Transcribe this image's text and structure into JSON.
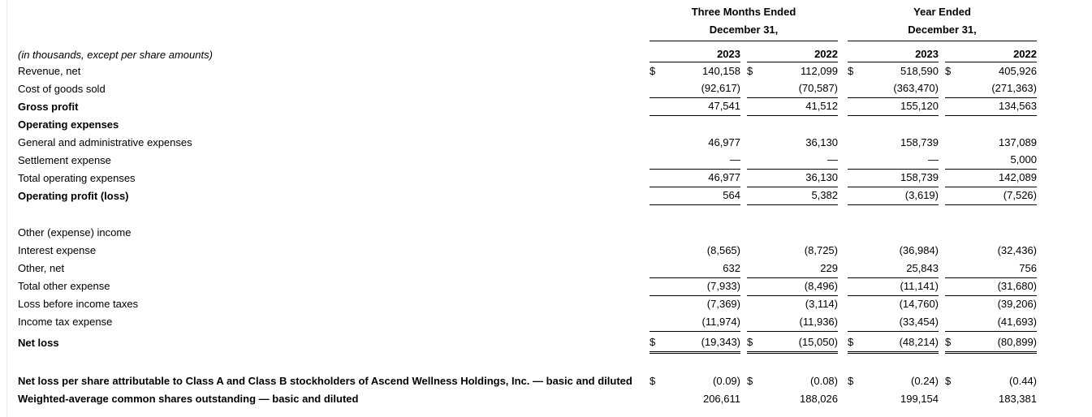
{
  "page": {
    "note": "(in thousands, except per share amounts)"
  },
  "colors": {
    "text": "#000000",
    "rule_line": "#000000",
    "background": "#ffffff",
    "edge_line": "#ebebeb"
  },
  "header": {
    "groups": [
      {
        "title": "Three Months Ended",
        "subtitle": "December 31,"
      },
      {
        "title": "Year Ended",
        "subtitle": "December 31,"
      }
    ],
    "years": [
      "2023",
      "2022",
      "2023",
      "2022"
    ]
  },
  "rows": [
    {
      "label": "Revenue, net",
      "indent": 0,
      "bold": false,
      "dollar": true,
      "values": [
        "140,158",
        "112,099",
        "518,590",
        "405,926"
      ],
      "underline": "none"
    },
    {
      "label": "Cost of goods sold",
      "indent": 0,
      "bold": false,
      "dollar": false,
      "values": [
        "(92,617)",
        "(70,587)",
        "(363,470)",
        "(271,363)"
      ],
      "underline": "single"
    },
    {
      "label": "Gross profit",
      "indent": 0,
      "bold": true,
      "dollar": false,
      "values": [
        "47,541",
        "41,512",
        "155,120",
        "134,563"
      ],
      "underline": "single"
    },
    {
      "label": "Operating expenses",
      "indent": 0,
      "bold": true,
      "dollar": false,
      "values": null,
      "underline": "none"
    },
    {
      "label": "General and administrative expenses",
      "indent": 1,
      "bold": false,
      "dollar": false,
      "values": [
        "46,977",
        "36,130",
        "158,739",
        "137,089"
      ],
      "underline": "none"
    },
    {
      "label": "Settlement expense",
      "indent": 1,
      "bold": false,
      "dollar": false,
      "values": [
        "—",
        "—",
        "—",
        "5,000"
      ],
      "underline": "single"
    },
    {
      "label": "Total operating expenses",
      "indent": 2,
      "bold": false,
      "dollar": false,
      "values": [
        "46,977",
        "36,130",
        "158,739",
        "142,089"
      ],
      "underline": "single"
    },
    {
      "label": "Operating profit (loss)",
      "indent": 0,
      "bold": true,
      "dollar": false,
      "values": [
        "564",
        "5,382",
        "(3,619)",
        "(7,526)"
      ],
      "underline": "single"
    },
    {
      "type": "spacer"
    },
    {
      "label": "Other (expense) income",
      "indent": 0,
      "bold": false,
      "dollar": false,
      "values": null,
      "underline": "none"
    },
    {
      "label": "Interest expense",
      "indent": 1,
      "bold": false,
      "dollar": false,
      "values": [
        "(8,565)",
        "(8,725)",
        "(36,984)",
        "(32,436)"
      ],
      "underline": "none"
    },
    {
      "label": "Other, net",
      "indent": 1,
      "bold": false,
      "dollar": false,
      "values": [
        "632",
        "229",
        "25,843",
        "756"
      ],
      "underline": "single"
    },
    {
      "label": "Total other expense",
      "indent": 2,
      "bold": false,
      "dollar": false,
      "values": [
        "(7,933)",
        "(8,496)",
        "(11,141)",
        "(31,680)"
      ],
      "underline": "single"
    },
    {
      "label": "Loss before income taxes",
      "indent": 0,
      "bold": false,
      "dollar": false,
      "values": [
        "(7,369)",
        "(3,114)",
        "(14,760)",
        "(39,206)"
      ],
      "underline": "none"
    },
    {
      "label": "Income tax expense",
      "indent": 0,
      "bold": false,
      "dollar": false,
      "values": [
        "(11,974)",
        "(11,936)",
        "(33,454)",
        "(41,693)"
      ],
      "underline": "single"
    },
    {
      "label": "Net loss",
      "indent": 0,
      "bold": true,
      "dollar": true,
      "values": [
        "(19,343)",
        "(15,050)",
        "(48,214)",
        "(80,899)"
      ],
      "underline": "double"
    },
    {
      "type": "spacer"
    },
    {
      "label": "Net loss per share attributable to Class A and Class B stockholders of Ascend Wellness Holdings, Inc. — basic and diluted",
      "indent": 0,
      "bold": true,
      "dollar": true,
      "values": [
        "(0.09)",
        "(0.08)",
        "(0.24)",
        "(0.44)"
      ],
      "underline": "none"
    },
    {
      "label": "Weighted-average common shares outstanding — basic and diluted",
      "indent": 0,
      "bold": true,
      "dollar": false,
      "values": [
        "206,611",
        "188,026",
        "199,154",
        "183,381"
      ],
      "underline": "none"
    }
  ]
}
